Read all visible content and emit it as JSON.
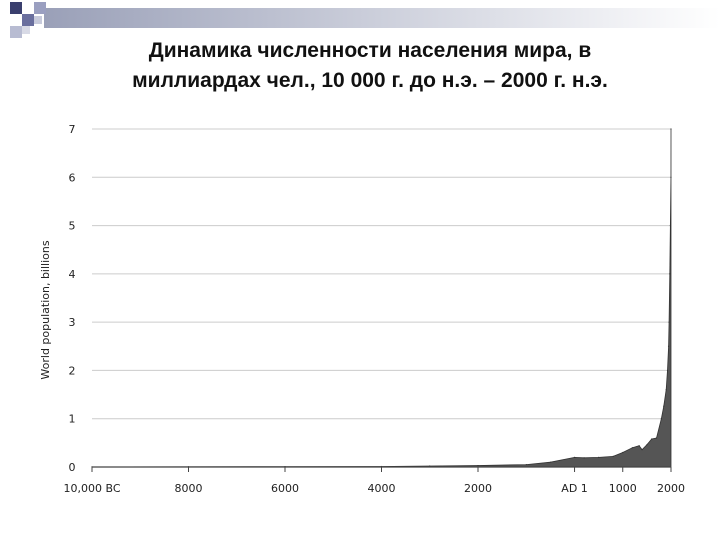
{
  "title_lines": [
    "Динамика численности населения мира, в",
    "миллиардах чел., 10 000 г. до н.э. – 2000 г. н.э."
  ],
  "chart_data": {
    "type": "area",
    "ylabel": "World population, billions",
    "xlabel": "",
    "y_ticks": [
      "0",
      "1",
      "2",
      "3",
      "4",
      "5",
      "6",
      "7"
    ],
    "x_ticks": [
      {
        "year": -10000,
        "label": "10,000 BC"
      },
      {
        "year": -8000,
        "label": "8000"
      },
      {
        "year": -6000,
        "label": "6000"
      },
      {
        "year": -4000,
        "label": "4000"
      },
      {
        "year": -2000,
        "label": "2000"
      },
      {
        "year": 1,
        "label": "AD 1"
      },
      {
        "year": 1000,
        "label": "1000"
      },
      {
        "year": 2000,
        "label": "2000"
      }
    ],
    "xlim": [
      -10000,
      2000
    ],
    "ylim": [
      0,
      7
    ],
    "grid": true,
    "series_color": "#555555",
    "points": [
      {
        "year": -10000,
        "pop": 0.002
      },
      {
        "year": -8000,
        "pop": 0.005
      },
      {
        "year": -6000,
        "pop": 0.007
      },
      {
        "year": -4000,
        "pop": 0.01
      },
      {
        "year": -3000,
        "pop": 0.02
      },
      {
        "year": -2000,
        "pop": 0.03
      },
      {
        "year": -1000,
        "pop": 0.05
      },
      {
        "year": -500,
        "pop": 0.1
      },
      {
        "year": 1,
        "pop": 0.2
      },
      {
        "year": 200,
        "pop": 0.19
      },
      {
        "year": 500,
        "pop": 0.2
      },
      {
        "year": 800,
        "pop": 0.22
      },
      {
        "year": 1000,
        "pop": 0.3
      },
      {
        "year": 1200,
        "pop": 0.4
      },
      {
        "year": 1340,
        "pop": 0.44
      },
      {
        "year": 1400,
        "pop": 0.36
      },
      {
        "year": 1500,
        "pop": 0.46
      },
      {
        "year": 1600,
        "pop": 0.58
      },
      {
        "year": 1700,
        "pop": 0.6
      },
      {
        "year": 1800,
        "pop": 1.0
      },
      {
        "year": 1850,
        "pop": 1.26
      },
      {
        "year": 1900,
        "pop": 1.6
      },
      {
        "year": 1927,
        "pop": 2.0
      },
      {
        "year": 1950,
        "pop": 2.5
      },
      {
        "year": 1960,
        "pop": 3.0
      },
      {
        "year": 1975,
        "pop": 4.0
      },
      {
        "year": 1987,
        "pop": 5.0
      },
      {
        "year": 1999,
        "pop": 6.0
      },
      {
        "year": 2000,
        "pop": 7.0
      }
    ]
  }
}
